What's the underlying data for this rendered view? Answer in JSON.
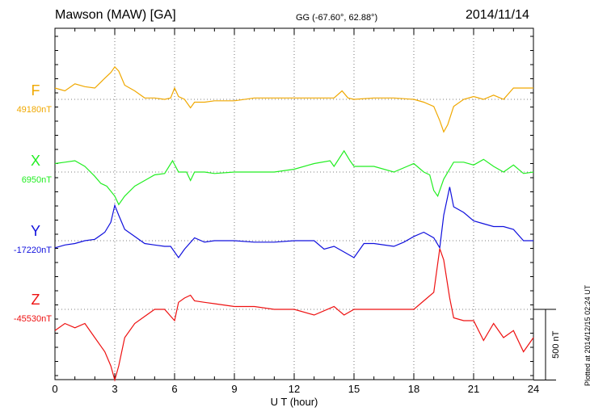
{
  "header": {
    "station": "Mawson (MAW)  [GA]",
    "coords": "GG (-67.60°,  62.88°)",
    "date": "2014/11/14"
  },
  "credit": "Plotted at 2014/12/15 02:24  UT",
  "chart_data": {
    "type": "line",
    "xlabel": "U T (hour)",
    "xlim": [
      0,
      24
    ],
    "xticks": [
      "0",
      "3",
      "6",
      "9",
      "12",
      "15",
      "18",
      "21",
      "24"
    ],
    "scale_label": "500 nT",
    "scale_value_nT": 500,
    "series": [
      {
        "name": "F",
        "baseline": "49180nT",
        "color": "#f0a800",
        "x": [
          0,
          0.5,
          1,
          1.5,
          2,
          2.5,
          2.8,
          3,
          3.2,
          3.5,
          4,
          4.5,
          5,
          5.5,
          5.8,
          6,
          6.2,
          6.5,
          6.8,
          7,
          7.5,
          8,
          9,
          10,
          11,
          12,
          13,
          14,
          14.4,
          14.7,
          15,
          16,
          17,
          18,
          18.5,
          19,
          19.3,
          19.5,
          19.7,
          20,
          20.5,
          21,
          21.5,
          22,
          22.5,
          23,
          23.5,
          24
        ],
        "y": [
          80,
          60,
          110,
          90,
          80,
          150,
          190,
          230,
          200,
          100,
          60,
          10,
          10,
          0,
          10,
          80,
          20,
          0,
          -60,
          -20,
          -20,
          -10,
          -10,
          10,
          10,
          10,
          10,
          10,
          60,
          10,
          0,
          10,
          10,
          0,
          -20,
          -50,
          -150,
          -230,
          -180,
          -50,
          0,
          20,
          0,
          30,
          0,
          80,
          80,
          80
        ]
      },
      {
        "name": "X",
        "baseline": "6950nT",
        "color": "#22ee22",
        "x": [
          0,
          0.5,
          1,
          1.5,
          2,
          2.3,
          2.6,
          3,
          3.2,
          3.5,
          4,
          4.5,
          5,
          5.5,
          5.9,
          6.2,
          6.6,
          6.8,
          7,
          7.5,
          8,
          9,
          10,
          11,
          12,
          13,
          13.8,
          14,
          14.5,
          14.8,
          15,
          16,
          17,
          18,
          18.5,
          18.8,
          19,
          19.2,
          19.5,
          20,
          20.5,
          21,
          21.5,
          22,
          22.5,
          23,
          23.5,
          24
        ],
        "y": [
          60,
          70,
          80,
          40,
          -30,
          -80,
          -100,
          -170,
          -230,
          -170,
          -100,
          -60,
          -20,
          -10,
          80,
          0,
          0,
          -60,
          0,
          0,
          -10,
          0,
          0,
          0,
          20,
          60,
          80,
          40,
          150,
          80,
          40,
          40,
          0,
          60,
          0,
          -20,
          -130,
          -170,
          -50,
          70,
          70,
          50,
          90,
          40,
          0,
          50,
          -10,
          0
        ]
      },
      {
        "name": "Y",
        "baseline": "-17220nT",
        "color": "#1010dd",
        "x": [
          0,
          0.5,
          1,
          1.5,
          2,
          2.5,
          2.8,
          3,
          3.2,
          3.5,
          4,
          4.5,
          5,
          5.5,
          5.8,
          6.2,
          6.5,
          7,
          7.5,
          8,
          9,
          10,
          11,
          12,
          13,
          13.5,
          14,
          14.5,
          15,
          15.5,
          16,
          17,
          17.5,
          18,
          18.5,
          19,
          19.3,
          19.5,
          19.8,
          20,
          20.5,
          21,
          21.5,
          22,
          22.5,
          23,
          23.5,
          24
        ],
        "y": [
          -50,
          -30,
          -20,
          0,
          10,
          60,
          130,
          250,
          180,
          80,
          30,
          -20,
          -30,
          -40,
          -40,
          -120,
          -60,
          20,
          -10,
          0,
          0,
          -10,
          -10,
          0,
          0,
          -60,
          -40,
          -80,
          -120,
          -20,
          -20,
          -40,
          -10,
          30,
          60,
          20,
          -50,
          180,
          380,
          240,
          200,
          140,
          120,
          100,
          100,
          80,
          0,
          0
        ]
      },
      {
        "name": "Z",
        "baseline": "-45530nT",
        "color": "#ee1111",
        "x": [
          0,
          0.5,
          1,
          1.5,
          2,
          2.5,
          2.8,
          3,
          3.2,
          3.5,
          4,
          4.5,
          5,
          5.5,
          6,
          6.2,
          6.5,
          6.8,
          7,
          7.5,
          8,
          9,
          10,
          11,
          12,
          13,
          14,
          14.5,
          15,
          16,
          17,
          18,
          18.5,
          19,
          19.3,
          19.5,
          19.8,
          20,
          20.5,
          21,
          21.5,
          22,
          22.5,
          23,
          23.5,
          24
        ],
        "y": [
          -150,
          -100,
          -130,
          -100,
          -200,
          -300,
          -400,
          -500,
          -400,
          -200,
          -100,
          -50,
          0,
          0,
          -80,
          50,
          80,
          100,
          60,
          50,
          40,
          20,
          20,
          0,
          0,
          -40,
          20,
          -40,
          0,
          0,
          0,
          0,
          60,
          120,
          430,
          350,
          80,
          -60,
          -80,
          -80,
          -220,
          -100,
          -200,
          -150,
          -300,
          -200
        ]
      }
    ]
  }
}
